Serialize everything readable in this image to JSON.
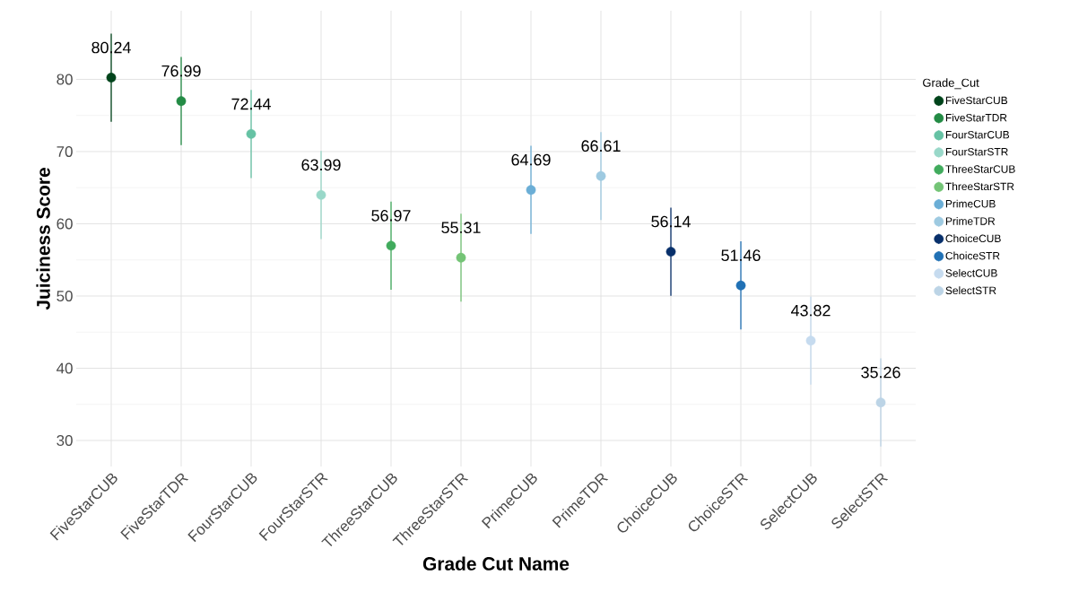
{
  "chart_data": {
    "type": "scatter",
    "xlabel": "Grade Cut Name",
    "ylabel": "Juiciness Score",
    "legend_title": "Grade_Cut",
    "categories": [
      "FiveStarCUB",
      "FiveStarTDR",
      "FourStarCUB",
      "FourStarSTR",
      "ThreeStarCUB",
      "ThreeStarSTR",
      "PrimeCUB",
      "PrimeTDR",
      "ChoiceCUB",
      "ChoiceSTR",
      "SelectCUB",
      "SelectSTR"
    ],
    "series": [
      {
        "name": "FiveStarCUB",
        "color": "#00441b",
        "values": [
          80.24,
          null,
          null,
          null,
          null,
          null,
          null,
          null,
          null,
          null,
          null,
          null
        ],
        "errors": [
          6.1,
          null,
          null,
          null,
          null,
          null,
          null,
          null,
          null,
          null,
          null,
          null
        ]
      },
      {
        "name": "FiveStarTDR",
        "color": "#238b45",
        "values": [
          null,
          76.99,
          null,
          null,
          null,
          null,
          null,
          null,
          null,
          null,
          null,
          null
        ],
        "errors": [
          null,
          6.1,
          null,
          null,
          null,
          null,
          null,
          null,
          null,
          null,
          null,
          null
        ]
      },
      {
        "name": "FourStarCUB",
        "color": "#66c2a4",
        "values": [
          null,
          null,
          72.44,
          null,
          null,
          null,
          null,
          null,
          null,
          null,
          null,
          null
        ],
        "errors": [
          null,
          null,
          6.1,
          null,
          null,
          null,
          null,
          null,
          null,
          null,
          null,
          null
        ]
      },
      {
        "name": "FourStarSTR",
        "color": "#99d8c9",
        "values": [
          null,
          null,
          null,
          63.99,
          null,
          null,
          null,
          null,
          null,
          null,
          null,
          null
        ],
        "errors": [
          null,
          null,
          null,
          6.1,
          null,
          null,
          null,
          null,
          null,
          null,
          null,
          null
        ]
      },
      {
        "name": "ThreeStarCUB",
        "color": "#41ab5d",
        "values": [
          null,
          null,
          null,
          null,
          56.97,
          null,
          null,
          null,
          null,
          null,
          null,
          null
        ],
        "errors": [
          null,
          null,
          null,
          null,
          6.1,
          null,
          null,
          null,
          null,
          null,
          null,
          null
        ]
      },
      {
        "name": "ThreeStarSTR",
        "color": "#74c476",
        "values": [
          null,
          null,
          null,
          null,
          null,
          55.31,
          null,
          null,
          null,
          null,
          null,
          null
        ],
        "errors": [
          null,
          null,
          null,
          null,
          null,
          6.1,
          null,
          null,
          null,
          null,
          null,
          null
        ]
      },
      {
        "name": "PrimeCUB",
        "color": "#6baed6",
        "values": [
          null,
          null,
          null,
          null,
          null,
          null,
          64.69,
          null,
          null,
          null,
          null,
          null
        ],
        "errors": [
          null,
          null,
          null,
          null,
          null,
          null,
          6.1,
          null,
          null,
          null,
          null,
          null
        ]
      },
      {
        "name": "PrimeTDR",
        "color": "#9ecae1",
        "values": [
          null,
          null,
          null,
          null,
          null,
          null,
          null,
          66.61,
          null,
          null,
          null,
          null
        ],
        "errors": [
          null,
          null,
          null,
          null,
          null,
          null,
          null,
          6.1,
          null,
          null,
          null,
          null
        ]
      },
      {
        "name": "ChoiceCUB",
        "color": "#08306b",
        "values": [
          null,
          null,
          null,
          null,
          null,
          null,
          null,
          null,
          56.14,
          null,
          null,
          null
        ],
        "errors": [
          null,
          null,
          null,
          null,
          null,
          null,
          null,
          null,
          6.1,
          null,
          null,
          null
        ]
      },
      {
        "name": "ChoiceSTR",
        "color": "#2171b5",
        "values": [
          null,
          null,
          null,
          null,
          null,
          null,
          null,
          null,
          null,
          51.46,
          null,
          null
        ],
        "errors": [
          null,
          null,
          null,
          null,
          null,
          null,
          null,
          null,
          null,
          6.1,
          null,
          null
        ]
      },
      {
        "name": "SelectCUB",
        "color": "#c6dbef",
        "values": [
          null,
          null,
          null,
          null,
          null,
          null,
          null,
          null,
          null,
          null,
          43.82,
          null
        ],
        "errors": [
          null,
          null,
          null,
          null,
          null,
          null,
          null,
          null,
          null,
          null,
          6.1,
          null
        ]
      },
      {
        "name": "SelectSTR",
        "color": "#bcd4e6",
        "values": [
          null,
          null,
          null,
          null,
          null,
          null,
          null,
          null,
          null,
          null,
          null,
          35.26
        ],
        "errors": [
          null,
          null,
          null,
          null,
          null,
          null,
          null,
          null,
          null,
          null,
          null,
          6.1
        ]
      }
    ],
    "ylim": [
      26.4,
      89.5
    ],
    "yticks": [
      30,
      40,
      50,
      60,
      70,
      80
    ],
    "grid": true,
    "legend": "right",
    "marker": "circle",
    "data_labels": true
  }
}
